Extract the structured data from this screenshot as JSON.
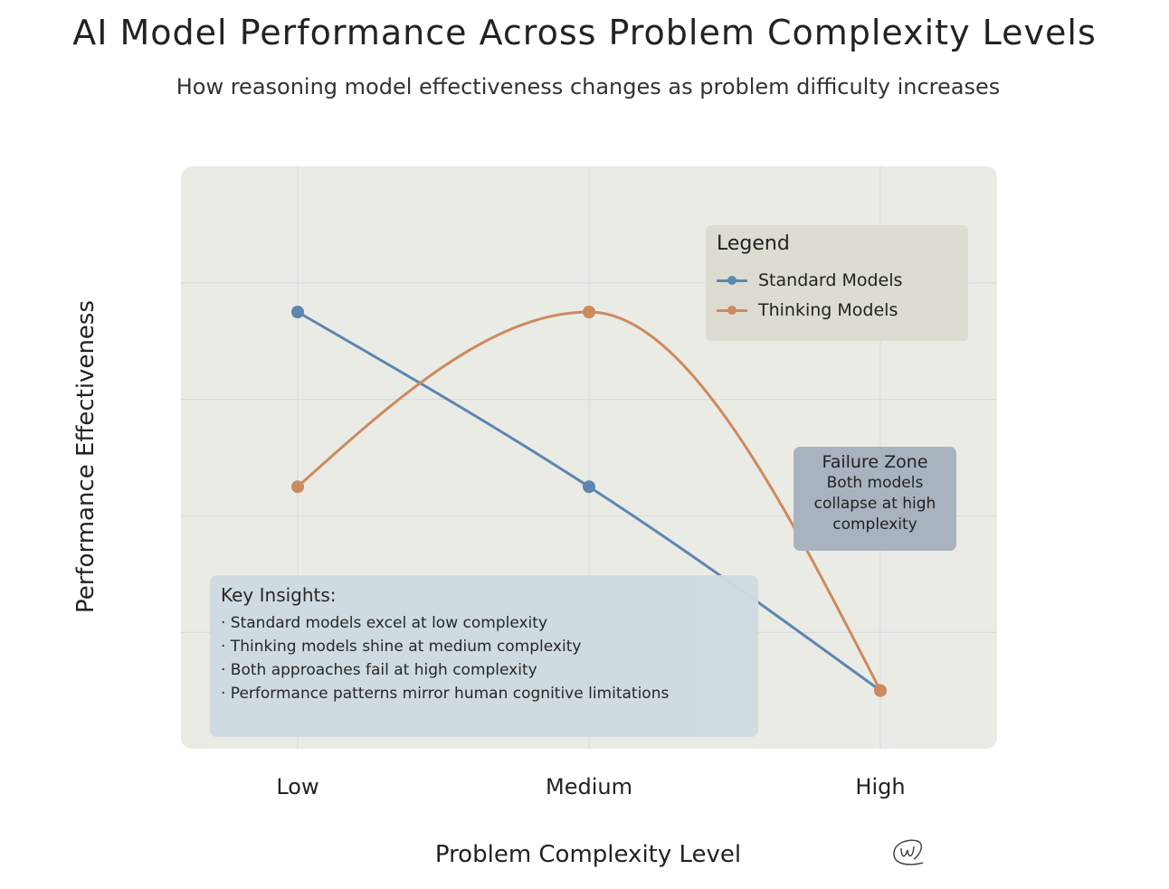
{
  "chart_data": {
    "type": "line",
    "title": "AI Model Performance Across Problem Complexity Levels",
    "subtitle": "How reasoning model effectiveness changes as problem difficulty increases",
    "xlabel": "Problem Complexity Level",
    "ylabel": "Performance Effectiveness",
    "categories": [
      "Low",
      "Medium",
      "High"
    ],
    "ylim": [
      0,
      10
    ],
    "grid": true,
    "legend_title": "Legend",
    "legend_position": "top-right",
    "series": [
      {
        "name": "Standard Models",
        "values": [
          7.5,
          4.5,
          1.0
        ],
        "color": "#5b87b0"
      },
      {
        "name": "Thinking Models",
        "values": [
          4.5,
          7.5,
          1.0
        ],
        "color": "#cc8a5e"
      }
    ],
    "annotations": {
      "failure_zone": {
        "title": "Failure Zone",
        "lines": [
          "Both models",
          "collapse at high",
          "complexity"
        ]
      },
      "key_insights": {
        "title": "Key Insights:",
        "items": [
          "· Standard models excel at low complexity",
          "· Thinking models shine at medium complexity",
          "· Both approaches fail at high complexity",
          "· Performance patterns mirror human cognitive limitations"
        ]
      }
    }
  },
  "colors": {
    "plot_bg": "#ebebe5",
    "grid": "#d5d8e0"
  }
}
